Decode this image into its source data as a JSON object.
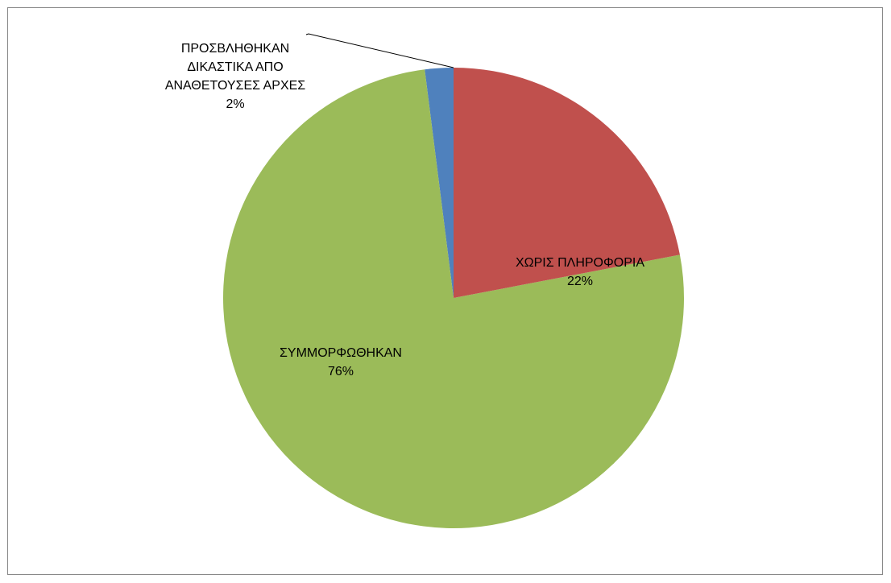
{
  "chart_data": {
    "type": "pie",
    "categories": [
      "ΧΩΡΙΣ ΠΛΗΡΟΦΟΡΙΑ",
      "ΣΥΜΜΟΡΦΩΘΗΚΑΝ",
      "ΠΡΟΣΒΛΗΘΗΚΑΝ ΔΙΚΑΣΤΙΚΑ ΑΠΟ ΑΝΑΘΕΤΟΥΣΕΣ ΑΡΧΕΣ"
    ],
    "values": [
      22,
      76,
      2
    ],
    "value_labels": [
      "22%",
      "76%",
      "2%"
    ],
    "colors": [
      "#c0504d",
      "#9bbb59",
      "#4f81bd"
    ]
  }
}
